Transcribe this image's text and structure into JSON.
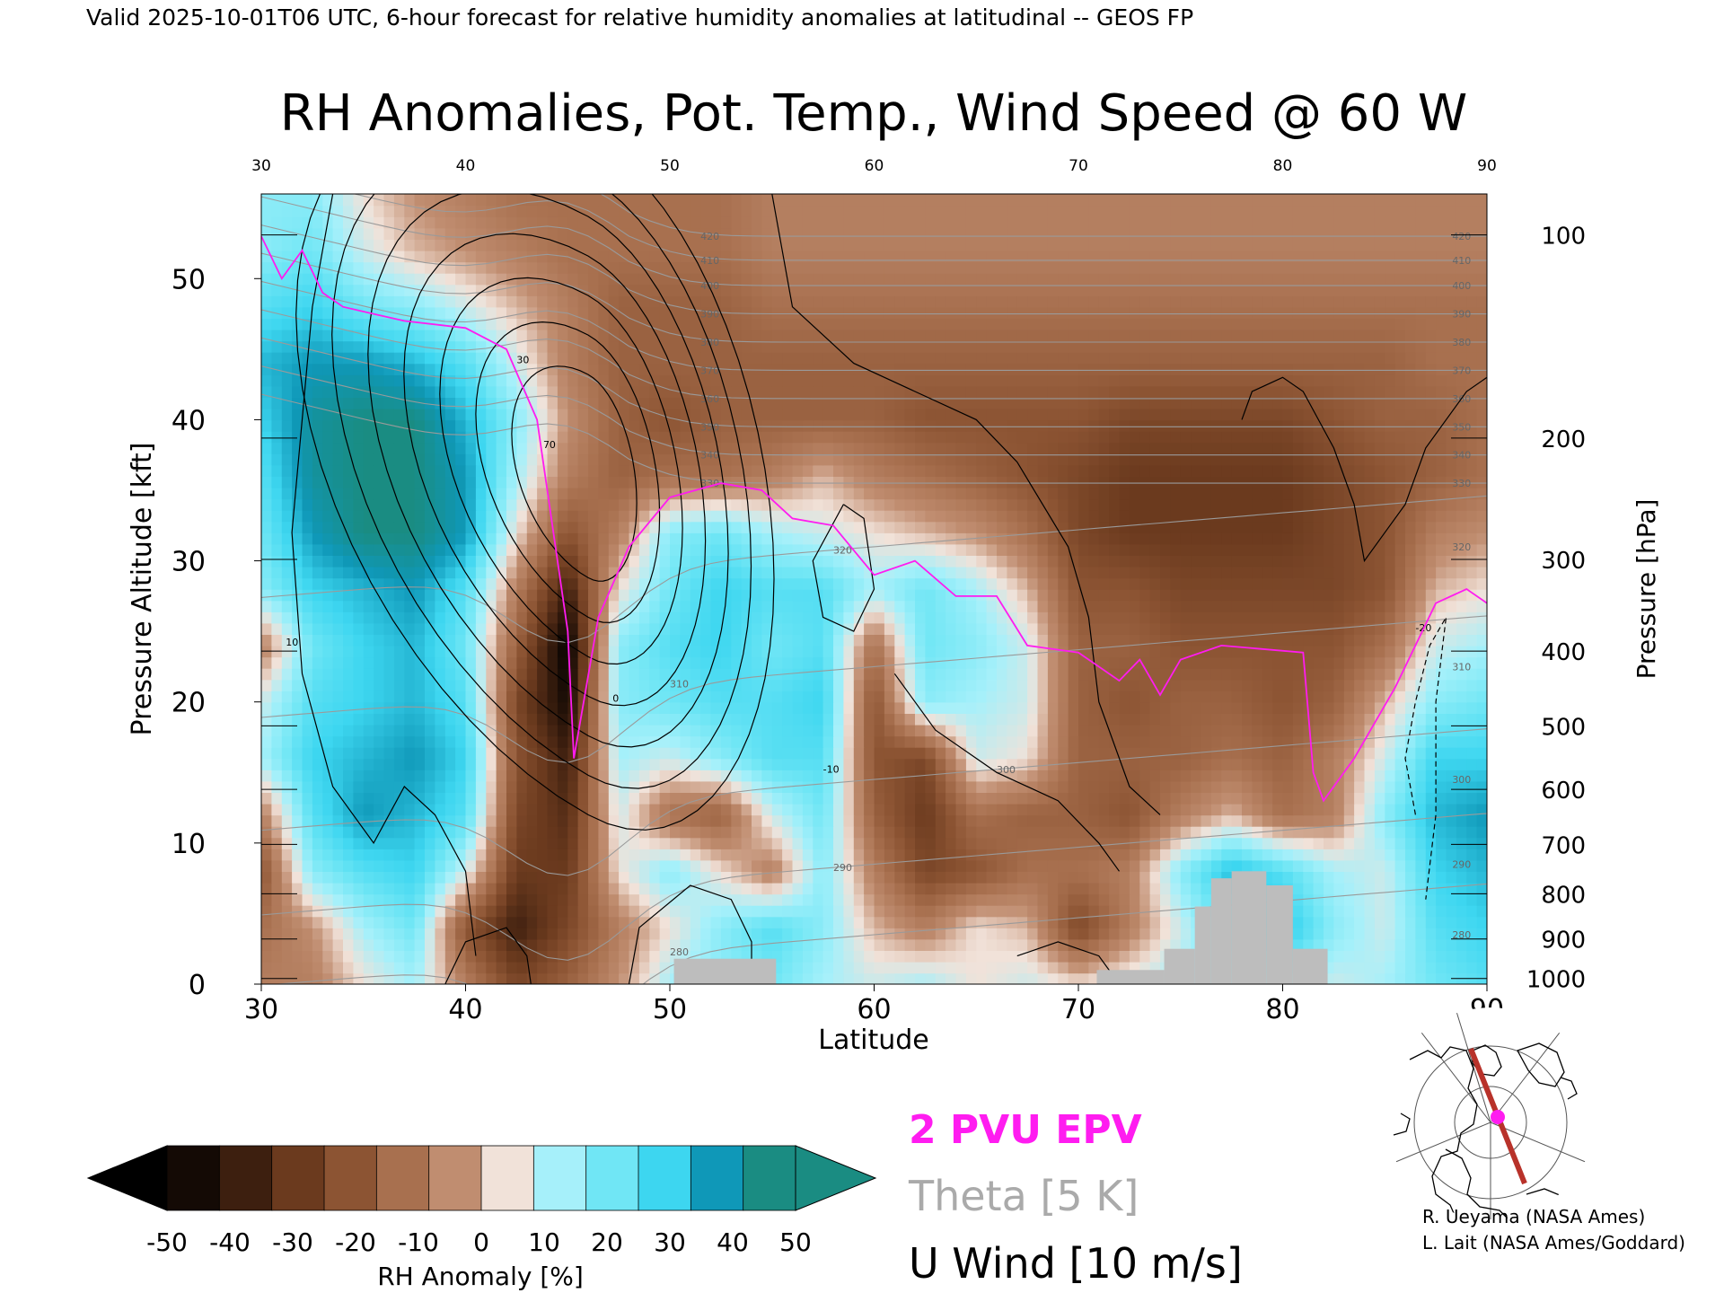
{
  "header": {
    "valid_line": "Valid 2025-10-01T06 UTC, 6-hour forecast for relative humidity anomalies at latitudinal -- GEOS FP"
  },
  "chart_data": {
    "type": "heatmap",
    "title": "RH Anomalies, Pot. Temp., Wind Speed @ 60 W",
    "xlabel": "Latitude",
    "ylabel_left": "Pressure Altitude [kft]",
    "ylabel_right": "Pressure [hPa]",
    "xlim": [
      30,
      90
    ],
    "ylim": [
      0,
      56
    ],
    "x_ticks": [
      30,
      40,
      50,
      60,
      70,
      80,
      90
    ],
    "y_ticks_left": [
      0,
      10,
      20,
      30,
      40,
      50
    ],
    "pressure_ticks": [
      {
        "label": "100",
        "kft": 53.1
      },
      {
        "label": "200",
        "kft": 38.7
      },
      {
        "label": "300",
        "kft": 30.1
      },
      {
        "label": "400",
        "kft": 23.6
      },
      {
        "label": "500",
        "kft": 18.3
      },
      {
        "label": "600",
        "kft": 13.8
      },
      {
        "label": "700",
        "kft": 9.9
      },
      {
        "label": "800",
        "kft": 6.4
      },
      {
        "label": "900",
        "kft": 3.2
      },
      {
        "label": "1000",
        "kft": 0.4
      }
    ],
    "theta_contours": [
      {
        "label": "280",
        "kft": 3.5
      },
      {
        "label": "290",
        "kft": 8.5
      },
      {
        "label": "300",
        "kft": 14.5
      },
      {
        "label": "310",
        "kft": 22.5
      },
      {
        "label": "320",
        "kft": 31.0
      },
      {
        "label": "330",
        "kft": 35.5
      },
      {
        "label": "340",
        "kft": 37.5
      },
      {
        "label": "350",
        "kft": 39.5
      },
      {
        "label": "360",
        "kft": 41.5
      },
      {
        "label": "370",
        "kft": 43.5
      },
      {
        "label": "380",
        "kft": 45.5
      },
      {
        "label": "390",
        "kft": 47.5
      },
      {
        "label": "400",
        "kft": 49.5
      },
      {
        "label": "410",
        "kft": 51.3
      },
      {
        "label": "420",
        "kft": 53.0
      }
    ],
    "wind_contour_labels": [
      "10",
      "30",
      "70",
      "0",
      "-10",
      "-20"
    ],
    "rh_field": {
      "lats": [
        30,
        32.5,
        35,
        37.5,
        40,
        42.5,
        45,
        47.5,
        50,
        52.5,
        55,
        57.5,
        60,
        62.5,
        65,
        67.5,
        70,
        72.5,
        75,
        77.5,
        80,
        82.5,
        85,
        87.5,
        90
      ],
      "kft": [
        0,
        4,
        8,
        12,
        16,
        20,
        24,
        28,
        32,
        36,
        40,
        44,
        48,
        52,
        56
      ],
      "values": [
        [
          -10,
          -10,
          5,
          15,
          -10,
          -30,
          -20,
          -5,
          15,
          20,
          25,
          15,
          10,
          15,
          5,
          10,
          5,
          10,
          15,
          20,
          20,
          10,
          15,
          25,
          30
        ],
        [
          -15,
          -5,
          15,
          25,
          -25,
          -45,
          -30,
          -10,
          5,
          20,
          30,
          20,
          0,
          -10,
          5,
          0,
          -30,
          -10,
          10,
          30,
          40,
          20,
          10,
          30,
          35
        ],
        [
          -25,
          20,
          30,
          35,
          10,
          -35,
          -35,
          5,
          20,
          5,
          -10,
          20,
          -10,
          -30,
          -25,
          -15,
          -15,
          -10,
          20,
          40,
          30,
          15,
          10,
          35,
          40
        ],
        [
          -10,
          30,
          45,
          40,
          30,
          -30,
          -40,
          10,
          -15,
          -20,
          10,
          25,
          -20,
          -35,
          -15,
          -20,
          -20,
          -25,
          -10,
          0,
          -15,
          -10,
          20,
          40,
          45
        ],
        [
          15,
          35,
          40,
          45,
          35,
          -25,
          -45,
          15,
          10,
          20,
          30,
          30,
          -25,
          -30,
          10,
          5,
          -20,
          -20,
          -20,
          -15,
          -20,
          -10,
          10,
          35,
          35
        ],
        [
          10,
          30,
          35,
          40,
          30,
          -30,
          -55,
          20,
          25,
          30,
          30,
          35,
          -25,
          20,
          15,
          10,
          -20,
          -25,
          -20,
          -20,
          -25,
          -20,
          0,
          20,
          25
        ],
        [
          -10,
          25,
          35,
          40,
          25,
          -20,
          -60,
          20,
          30,
          35,
          25,
          30,
          -15,
          25,
          20,
          10,
          -20,
          -20,
          -25,
          -25,
          -25,
          -25,
          -15,
          10,
          15
        ],
        [
          20,
          35,
          40,
          45,
          30,
          -10,
          -45,
          5,
          25,
          35,
          30,
          30,
          15,
          25,
          15,
          0,
          -25,
          -25,
          -30,
          -30,
          -30,
          -30,
          -25,
          0,
          5
        ],
        [
          25,
          45,
          55,
          55,
          45,
          5,
          -25,
          -10,
          20,
          25,
          15,
          10,
          5,
          0,
          -5,
          -15,
          -30,
          -35,
          -35,
          -35,
          -35,
          -30,
          -25,
          -10,
          -5
        ],
        [
          30,
          50,
          55,
          55,
          45,
          15,
          -10,
          -20,
          -15,
          -15,
          -10,
          0,
          -10,
          -15,
          -20,
          -25,
          -30,
          -35,
          -35,
          -35,
          -35,
          -30,
          -25,
          -20,
          -15
        ],
        [
          35,
          50,
          55,
          55,
          40,
          20,
          -5,
          -20,
          -25,
          -20,
          -20,
          -20,
          -20,
          -25,
          -25,
          -25,
          -25,
          -30,
          -30,
          -30,
          -30,
          -25,
          -20,
          -20,
          -15
        ],
        [
          40,
          45,
          45,
          40,
          30,
          10,
          -10,
          -20,
          -20,
          -20,
          -20,
          -20,
          -20,
          -20,
          -20,
          -20,
          -20,
          -20,
          -20,
          -20,
          -20,
          -20,
          -20,
          -15,
          -15
        ],
        [
          30,
          35,
          25,
          20,
          10,
          0,
          -10,
          -20,
          -20,
          -20,
          -15,
          -15,
          -15,
          -15,
          -15,
          -15,
          -15,
          -15,
          -15,
          -15,
          -15,
          -15,
          -15,
          -15,
          -15
        ],
        [
          20,
          25,
          10,
          0,
          -5,
          -10,
          -15,
          -15,
          -15,
          -15,
          -10,
          -10,
          -10,
          -10,
          -10,
          -10,
          -10,
          -10,
          -10,
          -10,
          -10,
          -10,
          -10,
          -10,
          -10
        ],
        [
          20,
          20,
          5,
          -5,
          -10,
          -15,
          -15,
          -15,
          -15,
          -15,
          -10,
          -10,
          -10,
          -10,
          -10,
          -10,
          -10,
          -10,
          -10,
          -10,
          -10,
          -10,
          -10,
          -10,
          -10
        ]
      ]
    },
    "terrain": [
      {
        "lat0": 50.2,
        "lat1": 55.2,
        "kft": 1.8
      },
      {
        "lat0": 70.9,
        "lat1": 74.2,
        "kft": 1.0
      },
      {
        "lat0": 74.2,
        "lat1": 75.7,
        "kft": 2.5
      },
      {
        "lat0": 75.7,
        "lat1": 76.5,
        "kft": 5.5
      },
      {
        "lat0": 76.5,
        "lat1": 77.5,
        "kft": 7.5
      },
      {
        "lat0": 77.5,
        "lat1": 79.2,
        "kft": 8.0
      },
      {
        "lat0": 79.2,
        "lat1": 80.5,
        "kft": 7.0
      },
      {
        "lat0": 80.5,
        "lat1": 82.2,
        "kft": 2.5
      }
    ],
    "pvu2_line": [
      [
        30,
        53
      ],
      [
        31,
        50
      ],
      [
        32,
        52
      ],
      [
        33,
        49
      ],
      [
        34,
        48
      ],
      [
        35.5,
        47.5
      ],
      [
        37,
        47
      ],
      [
        40,
        46.5
      ],
      [
        42,
        45
      ],
      [
        43.5,
        40
      ],
      [
        44.5,
        30
      ],
      [
        45,
        25
      ],
      [
        45.3,
        16
      ],
      [
        46.5,
        26
      ],
      [
        48,
        31
      ],
      [
        50,
        34.5
      ],
      [
        52.5,
        35.5
      ],
      [
        54.5,
        35
      ],
      [
        56,
        33
      ],
      [
        58,
        32.5
      ],
      [
        60,
        29
      ],
      [
        62,
        30
      ],
      [
        64,
        27.5
      ],
      [
        66,
        27.5
      ],
      [
        67.5,
        24
      ],
      [
        70,
        23.5
      ],
      [
        72,
        21.5
      ],
      [
        73,
        23
      ],
      [
        74,
        20.5
      ],
      [
        75,
        23
      ],
      [
        77,
        24
      ],
      [
        81,
        23.5
      ],
      [
        81.5,
        15
      ],
      [
        82,
        13
      ],
      [
        83.5,
        16
      ],
      [
        85.5,
        21
      ],
      [
        87.5,
        27
      ],
      [
        89,
        28
      ],
      [
        90,
        27
      ]
    ],
    "colorbar": {
      "label": "RH Anomaly [%]",
      "tick_labels": [
        "-50",
        "-40",
        "-30",
        "-20",
        "-10",
        "0",
        "10",
        "20",
        "30",
        "40",
        "50"
      ],
      "colors": [
        "#000000",
        "#3d1f0f",
        "#6b3a1e",
        "#8c5433",
        "#a8704f",
        "#c08d70",
        "#d9b6a2",
        "#f1e2d9",
        "#d6f7fa",
        "#a6f0fa",
        "#70e6f5",
        "#3dd6f0",
        "#19b9d9",
        "#0f98b8",
        "#1a8c82"
      ]
    },
    "legend": {
      "epv": "2 PVU EPV",
      "theta": "Theta [5 K]",
      "wind": "U Wind [10 m/s]"
    },
    "colors": {
      "epv": "#ff1cf0",
      "theta_label": "#aaaaaa",
      "theta_line": "#9a9a9a",
      "terrain": "#bdbdbd",
      "track": "#b8322a"
    }
  },
  "credits": {
    "line1": "R. Ueyama (NASA Ames)",
    "line2": "L. Lait (NASA Ames/Goddard)"
  },
  "inset_map": {
    "description_icon": "globe-track-icon"
  }
}
